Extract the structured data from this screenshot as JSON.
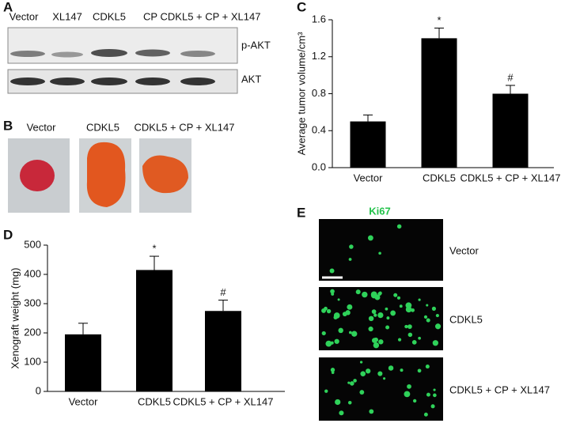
{
  "panel_a": {
    "label": "A",
    "lanes": [
      "Vector",
      "XL147",
      "CDKL5",
      "CP",
      "CDKL5 + CP + XL147"
    ],
    "blots": [
      "p-AKT",
      "AKT"
    ]
  },
  "panel_b": {
    "label": "B",
    "images": [
      "Vector",
      "CDKL5",
      "CDKL5 + CP + XL147"
    ]
  },
  "panel_e": {
    "label": "E",
    "stain": "Ki67",
    "rows": [
      "Vector",
      "CDKL5",
      "CDKL5 + CP + XL147"
    ]
  },
  "chart_data": [
    {
      "type": "bar",
      "label": "C",
      "y_label": "Average tumor volume/cm³",
      "categories": [
        "Vector",
        "CDKL5",
        "CDKL5 + CP + XL147"
      ],
      "values": [
        0.5,
        1.4,
        0.8
      ],
      "errors": [
        0.07,
        0.11,
        0.09
      ],
      "significance": [
        null,
        "*",
        "#"
      ],
      "color": "#000000",
      "ylim": [
        0,
        1.6
      ],
      "yticks": [
        {
          "value": 0,
          "label": "0.0"
        },
        0.4,
        0.8,
        1.2,
        1.6
      ]
    },
    {
      "type": "bar",
      "label": "D",
      "y_label": "Xenograft weight (mg)",
      "categories": [
        "Vector",
        "CDKL5",
        "CDKL5 + CP + XL147"
      ],
      "values": [
        195,
        415,
        275
      ],
      "errors": [
        38,
        47,
        37
      ],
      "significance": [
        null,
        "*",
        "#"
      ],
      "color": "#000000",
      "ylim": [
        0,
        500
      ],
      "yticks": [
        0,
        100,
        200,
        300,
        400,
        500
      ]
    }
  ]
}
